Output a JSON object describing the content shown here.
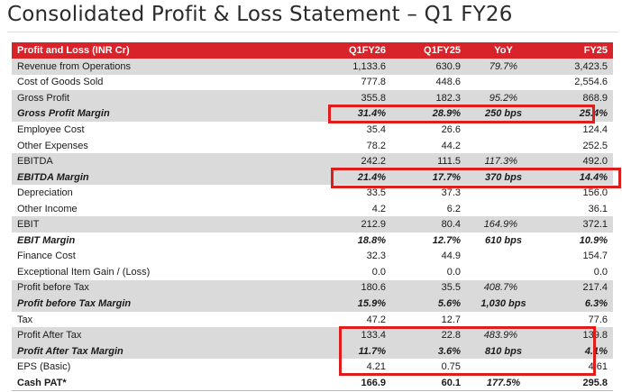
{
  "title": "Consolidated Profit & Loss Statement – Q1 FY26",
  "header": {
    "label": "Profit and Loss (INR Cr)",
    "q1fy26": "Q1FY26",
    "q1fy25": "Q1FY25",
    "yoy": "YoY",
    "fy25": "FY25"
  },
  "rows": [
    {
      "label": "Revenue from Operations",
      "q1fy26": "1,133.6",
      "q1fy25": "630.9",
      "yoy": "79.7%",
      "fy25": "3,423.5"
    },
    {
      "label": "Cost of Goods Sold",
      "q1fy26": "777.8",
      "q1fy25": "448.6",
      "yoy": "",
      "fy25": "2,554.6"
    },
    {
      "label": "Gross Profit",
      "q1fy26": "355.8",
      "q1fy25": "182.3",
      "yoy": "95.2%",
      "fy25": "868.9"
    },
    {
      "label": "Gross Profit Margin",
      "q1fy26": "31.4%",
      "q1fy25": "28.9%",
      "yoy": "250 bps",
      "fy25": "25.4%"
    },
    {
      "label": "Employee Cost",
      "q1fy26": "35.4",
      "q1fy25": "26.6",
      "yoy": "",
      "fy25": "124.4"
    },
    {
      "label": "Other Expenses",
      "q1fy26": "78.2",
      "q1fy25": "44.2",
      "yoy": "",
      "fy25": "252.5"
    },
    {
      "label": "EBITDA",
      "q1fy26": "242.2",
      "q1fy25": "111.5",
      "yoy": "117.3%",
      "fy25": "492.0"
    },
    {
      "label": "EBITDA Margin",
      "q1fy26": "21.4%",
      "q1fy25": "17.7%",
      "yoy": "370 bps",
      "fy25": "14.4%"
    },
    {
      "label": "Depreciation",
      "q1fy26": "33.5",
      "q1fy25": "37.3",
      "yoy": "",
      "fy25": "156.0"
    },
    {
      "label": "Other Income",
      "q1fy26": "4.2",
      "q1fy25": "6.2",
      "yoy": "",
      "fy25": "36.1"
    },
    {
      "label": "EBIT",
      "q1fy26": "212.9",
      "q1fy25": "80.4",
      "yoy": "164.9%",
      "fy25": "372.1"
    },
    {
      "label": "EBIT Margin",
      "q1fy26": "18.8%",
      "q1fy25": "12.7%",
      "yoy": "610 bps",
      "fy25": "10.9%"
    },
    {
      "label": "Finance Cost",
      "q1fy26": "32.3",
      "q1fy25": "44.9",
      "yoy": "",
      "fy25": "154.7"
    },
    {
      "label": "Exceptional Item Gain / (Loss)",
      "q1fy26": "0.0",
      "q1fy25": "0.0",
      "yoy": "",
      "fy25": "0.0"
    },
    {
      "label": "Profit before Tax",
      "q1fy26": "180.6",
      "q1fy25": "35.5",
      "yoy": "408.7%",
      "fy25": "217.4"
    },
    {
      "label": "Profit before Tax Margin",
      "q1fy26": "15.9%",
      "q1fy25": "5.6%",
      "yoy": "1,030 bps",
      "fy25": "6.3%"
    },
    {
      "label": "Tax",
      "q1fy26": "47.2",
      "q1fy25": "12.7",
      "yoy": "",
      "fy25": "77.6"
    },
    {
      "label": "Profit After Tax",
      "q1fy26": "133.4",
      "q1fy25": "22.8",
      "yoy": "483.9%",
      "fy25": "139.8"
    },
    {
      "label": "Profit After Tax Margin",
      "q1fy26": "11.7%",
      "q1fy25": "3.6%",
      "yoy": "810 bps",
      "fy25": "4.1%"
    },
    {
      "label": "EPS (Basic)",
      "q1fy26": "4.21",
      "q1fy25": "0.75",
      "yoy": "",
      "fy25": "4.61"
    },
    {
      "label": "Cash PAT*",
      "q1fy26": "166.9",
      "q1fy25": "60.1",
      "yoy": "177.5%",
      "fy25": "295.8"
    }
  ],
  "colors": {
    "header_bg": "#d9232a",
    "alt_row_bg": "#dadada",
    "highlight_border": "#e01d1d"
  }
}
